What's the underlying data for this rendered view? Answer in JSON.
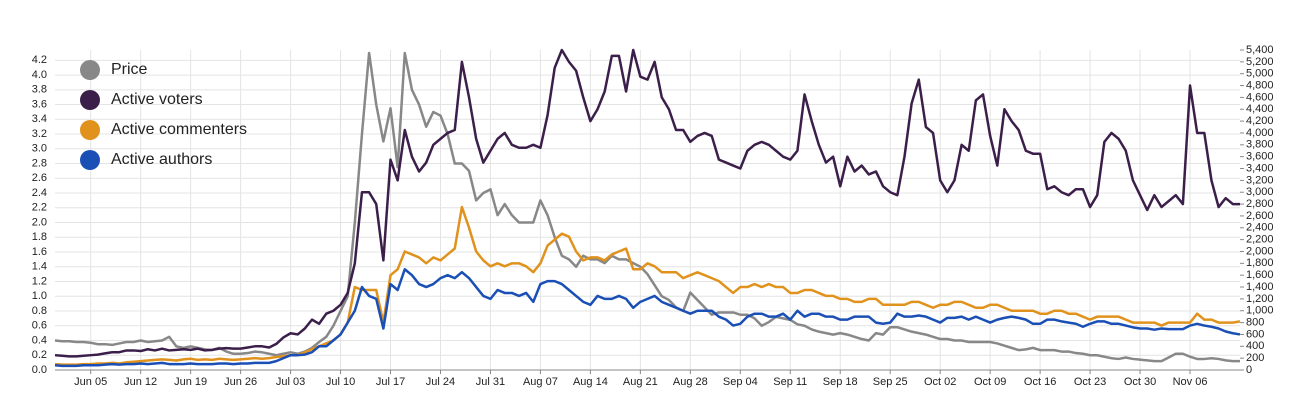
{
  "chart_data": {
    "type": "line",
    "categories": [
      "May 31",
      "Jun 01",
      "Jun 02",
      "Jun 03",
      "Jun 04",
      "Jun 05",
      "Jun 06",
      "Jun 07",
      "Jun 08",
      "Jun 09",
      "Jun 10",
      "Jun 11",
      "Jun 12",
      "Jun 13",
      "Jun 14",
      "Jun 15",
      "Jun 16",
      "Jun 17",
      "Jun 18",
      "Jun 19",
      "Jun 20",
      "Jun 21",
      "Jun 22",
      "Jun 23",
      "Jun 24",
      "Jun 25",
      "Jun 26",
      "Jun 27",
      "Jun 28",
      "Jun 29",
      "Jun 30",
      "Jul 01",
      "Jul 02",
      "Jul 03",
      "Jul 04",
      "Jul 05",
      "Jul 06",
      "Jul 07",
      "Jul 08",
      "Jul 09",
      "Jul 10",
      "Jul 11",
      "Jul 12",
      "Jul 13",
      "Jul 14",
      "Jul 15",
      "Jul 16",
      "Jul 17",
      "Jul 18",
      "Jul 19",
      "Jul 20",
      "Jul 21",
      "Jul 22",
      "Jul 23",
      "Jul 24",
      "Jul 25",
      "Jul 26",
      "Jul 27",
      "Jul 28",
      "Jul 29",
      "Jul 30",
      "Jul 31",
      "Aug 01",
      "Aug 02",
      "Aug 03",
      "Aug 04",
      "Aug 05",
      "Aug 06",
      "Aug 07",
      "Aug 08",
      "Aug 09",
      "Aug 10",
      "Aug 11",
      "Aug 12",
      "Aug 13",
      "Aug 14",
      "Aug 15",
      "Aug 16",
      "Aug 17",
      "Aug 18",
      "Aug 19",
      "Aug 20",
      "Aug 21",
      "Aug 22",
      "Aug 23",
      "Aug 24",
      "Aug 25",
      "Aug 26",
      "Aug 27",
      "Aug 28",
      "Aug 29",
      "Aug 30",
      "Aug 31",
      "Sep 01",
      "Sep 02",
      "Sep 03",
      "Sep 04",
      "Sep 05",
      "Sep 06",
      "Sep 07",
      "Sep 08",
      "Sep 09",
      "Sep 10",
      "Sep 11",
      "Sep 12",
      "Sep 13",
      "Sep 14",
      "Sep 15",
      "Sep 16",
      "Sep 17",
      "Sep 18",
      "Sep 19",
      "Sep 20",
      "Sep 21",
      "Sep 22",
      "Sep 23",
      "Sep 24",
      "Sep 25",
      "Sep 26",
      "Sep 27",
      "Sep 28",
      "Sep 29",
      "Sep 30",
      "Oct 01",
      "Oct 02",
      "Oct 03",
      "Oct 04",
      "Oct 05",
      "Oct 06",
      "Oct 07",
      "Oct 08",
      "Oct 09",
      "Oct 10",
      "Oct 11",
      "Oct 12",
      "Oct 13",
      "Oct 14",
      "Oct 15",
      "Oct 16",
      "Oct 17",
      "Oct 18",
      "Oct 19",
      "Oct 20",
      "Oct 21",
      "Oct 22",
      "Oct 23",
      "Oct 24",
      "Oct 25",
      "Oct 26",
      "Oct 27",
      "Oct 28",
      "Oct 29",
      "Oct 30",
      "Oct 31",
      "Nov 01",
      "Nov 02",
      "Nov 03",
      "Nov 04",
      "Nov 05",
      "Nov 06",
      "Nov 07",
      "Nov 08",
      "Nov 09",
      "Nov 10",
      "Nov 11",
      "Nov 12",
      "Nov 13"
    ],
    "xticks": [
      "Jun 05",
      "Jun 12",
      "Jun 19",
      "Jun 26",
      "Jul 03",
      "Jul 10",
      "Jul 17",
      "Jul 24",
      "Jul 31",
      "Aug 07",
      "Aug 14",
      "Aug 21",
      "Aug 28",
      "Sep 04",
      "Sep 11",
      "Sep 18",
      "Sep 25",
      "Oct 02",
      "Oct 09",
      "Oct 16",
      "Oct 23",
      "Oct 30",
      "Nov 06"
    ],
    "series": [
      {
        "name": "Price",
        "color": "#888888",
        "axis": "y",
        "values": [
          0.4,
          0.39,
          0.39,
          0.38,
          0.38,
          0.37,
          0.35,
          0.35,
          0.34,
          0.36,
          0.38,
          0.38,
          0.4,
          0.38,
          0.39,
          0.4,
          0.45,
          0.32,
          0.3,
          0.32,
          0.3,
          0.28,
          0.27,
          0.3,
          0.25,
          0.22,
          0.22,
          0.23,
          0.25,
          0.24,
          0.22,
          0.2,
          0.22,
          0.24,
          0.22,
          0.25,
          0.3,
          0.38,
          0.45,
          0.6,
          0.8,
          1.0,
          2.0,
          3.2,
          4.3,
          3.6,
          3.1,
          3.55,
          2.75,
          4.3,
          3.8,
          3.6,
          3.3,
          3.5,
          3.45,
          3.2,
          2.8,
          2.8,
          2.7,
          2.3,
          2.4,
          2.45,
          2.1,
          2.25,
          2.1,
          2.0,
          2.0,
          2.0,
          2.3,
          2.1,
          1.8,
          1.55,
          1.5,
          1.4,
          1.55,
          1.5,
          1.5,
          1.45,
          1.55,
          1.5,
          1.5,
          1.45,
          1.4,
          1.3,
          1.15,
          1.0,
          0.95,
          0.85,
          0.8,
          1.05,
          0.95,
          0.85,
          0.75,
          0.78,
          0.78,
          0.78,
          0.75,
          0.75,
          0.7,
          0.6,
          0.65,
          0.72,
          0.7,
          0.68,
          0.62,
          0.6,
          0.55,
          0.52,
          0.5,
          0.48,
          0.5,
          0.48,
          0.45,
          0.42,
          0.4,
          0.5,
          0.48,
          0.58,
          0.58,
          0.55,
          0.52,
          0.5,
          0.48,
          0.45,
          0.42,
          0.42,
          0.4,
          0.4,
          0.38,
          0.38,
          0.38,
          0.38,
          0.36,
          0.33,
          0.3,
          0.27,
          0.28,
          0.3,
          0.27,
          0.27,
          0.27,
          0.25,
          0.25,
          0.23,
          0.22,
          0.2,
          0.2,
          0.18,
          0.16,
          0.15,
          0.17,
          0.15,
          0.14,
          0.13,
          0.12,
          0.12,
          0.17,
          0.22,
          0.22,
          0.18,
          0.15,
          0.15,
          0.16,
          0.15,
          0.13,
          0.12,
          0.12
        ]
      },
      {
        "name": "Active voters",
        "color": "#3b1f4a",
        "axis": "y2",
        "values": [
          250,
          240,
          230,
          230,
          240,
          250,
          260,
          280,
          300,
          300,
          330,
          330,
          320,
          350,
          330,
          360,
          330,
          340,
          350,
          340,
          360,
          330,
          340,
          360,
          370,
          360,
          360,
          380,
          400,
          400,
          380,
          440,
          550,
          620,
          600,
          700,
          850,
          780,
          950,
          1000,
          1100,
          1300,
          1800,
          3000,
          3000,
          2800,
          1850,
          3550,
          3200,
          4050,
          3600,
          3350,
          3500,
          3800,
          3900,
          4000,
          4050,
          5200,
          4600,
          3900,
          3500,
          3700,
          3900,
          4000,
          3800,
          3750,
          3750,
          3800,
          3750,
          4300,
          5100,
          5400,
          5200,
          5050,
          4600,
          4200,
          4400,
          4700,
          5300,
          5300,
          4700,
          5400,
          4950,
          4900,
          5200,
          4600,
          4400,
          4050,
          4050,
          3850,
          3950,
          4000,
          3950,
          3550,
          3500,
          3450,
          3400,
          3700,
          3800,
          3850,
          3800,
          3700,
          3600,
          3550,
          3700,
          4650,
          4200,
          3800,
          3500,
          3600,
          3100,
          3600,
          3350,
          3450,
          3300,
          3350,
          3100,
          3000,
          2950,
          3600,
          4500,
          4900,
          4100,
          4000,
          3200,
          3000,
          3200,
          3800,
          3700,
          4550,
          4650,
          3950,
          3450,
          4400,
          4200,
          4050,
          3700,
          3650,
          3650,
          3050,
          3100,
          3000,
          2950,
          3050,
          3050,
          2750,
          2950,
          3850,
          4000,
          3900,
          3700,
          3200,
          2950,
          2700,
          2950,
          2750,
          2850,
          2950,
          2800,
          4800,
          4000,
          4000,
          3200,
          2750,
          2900,
          2800,
          2800
        ]
      },
      {
        "name": "Active commenters",
        "color": "#e0921c",
        "axis": "y2",
        "values": [
          100,
          90,
          90,
          90,
          100,
          100,
          110,
          110,
          120,
          110,
          130,
          140,
          150,
          160,
          170,
          180,
          170,
          160,
          180,
          190,
          170,
          180,
          170,
          190,
          180,
          170,
          180,
          190,
          200,
          190,
          200,
          220,
          230,
          250,
          250,
          300,
          350,
          400,
          450,
          500,
          600,
          800,
          1400,
          1350,
          1350,
          1350,
          800,
          1600,
          1700,
          2000,
          1950,
          1900,
          1800,
          1900,
          1850,
          1950,
          2050,
          2750,
          2400,
          2000,
          1850,
          1750,
          1800,
          1750,
          1800,
          1800,
          1750,
          1650,
          1800,
          2100,
          2200,
          2300,
          2250,
          2000,
          1850,
          1900,
          1900,
          1850,
          1950,
          2000,
          2050,
          1700,
          1700,
          1800,
          1750,
          1650,
          1650,
          1650,
          1550,
          1600,
          1650,
          1600,
          1550,
          1500,
          1400,
          1300,
          1400,
          1400,
          1450,
          1400,
          1450,
          1400,
          1400,
          1300,
          1300,
          1350,
          1350,
          1300,
          1250,
          1250,
          1200,
          1200,
          1150,
          1150,
          1200,
          1200,
          1100,
          1100,
          1100,
          1100,
          1150,
          1150,
          1100,
          1050,
          1100,
          1100,
          1150,
          1150,
          1100,
          1050,
          1050,
          1100,
          1100,
          1050,
          1000,
          1000,
          1000,
          1000,
          950,
          950,
          1000,
          1000,
          950,
          950,
          900,
          850,
          900,
          900,
          900,
          900,
          850,
          800,
          800,
          800,
          800,
          750,
          800,
          800,
          800,
          800,
          950,
          850,
          850,
          800,
          800,
          800,
          820
        ]
      },
      {
        "name": "Active authors",
        "color": "#1a4fb5",
        "axis": "y2",
        "values": [
          80,
          70,
          70,
          70,
          80,
          80,
          80,
          90,
          100,
          90,
          100,
          100,
          110,
          100,
          110,
          120,
          100,
          100,
          100,
          110,
          100,
          100,
          100,
          110,
          110,
          100,
          110,
          110,
          120,
          120,
          120,
          150,
          200,
          250,
          250,
          260,
          300,
          400,
          400,
          500,
          600,
          800,
          1000,
          1400,
          1250,
          1200,
          700,
          1450,
          1350,
          1700,
          1600,
          1450,
          1400,
          1450,
          1550,
          1600,
          1550,
          1650,
          1550,
          1400,
          1250,
          1200,
          1350,
          1300,
          1300,
          1250,
          1300,
          1150,
          1450,
          1500,
          1500,
          1450,
          1350,
          1250,
          1150,
          1100,
          1250,
          1200,
          1200,
          1250,
          1200,
          1050,
          1150,
          1200,
          1250,
          1150,
          1100,
          1050,
          1000,
          950,
          1000,
          1000,
          1000,
          900,
          850,
          750,
          780,
          900,
          950,
          950,
          900,
          900,
          950,
          850,
          1000,
          900,
          950,
          950,
          900,
          900,
          850,
          850,
          900,
          900,
          900,
          800,
          780,
          800,
          950,
          900,
          900,
          920,
          900,
          850,
          800,
          880,
          880,
          900,
          850,
          900,
          850,
          800,
          850,
          880,
          900,
          880,
          850,
          780,
          780,
          850,
          850,
          820,
          800,
          780,
          730,
          780,
          820,
          820,
          780,
          780,
          750,
          720,
          700,
          700,
          680,
          700,
          690,
          690,
          690,
          750,
          780,
          750,
          730,
          700,
          650,
          620,
          600
        ]
      }
    ],
    "ylim": [
      0,
      4.34
    ],
    "yticks": [
      {
        "value": 0,
        "label": "0.0"
      },
      0.2,
      0.4,
      0.6,
      0.8,
      {
        "value": 1,
        "label": "1.0"
      },
      1.2,
      1.4,
      1.6,
      1.8,
      {
        "value": 2,
        "label": "2.0"
      },
      2.2,
      2.4,
      2.6,
      2.8,
      {
        "value": 3,
        "label": "3.0"
      },
      3.2,
      3.4,
      3.6,
      3.8,
      {
        "value": 4,
        "label": "4.0"
      },
      4.2
    ],
    "y2lim": [
      0,
      5400
    ],
    "y2ticks": [
      0,
      200,
      400,
      600,
      800,
      {
        "value": 1000,
        "label": "1,000"
      },
      {
        "value": 1200,
        "label": "1,200"
      },
      {
        "value": 1400,
        "label": "1,400"
      },
      {
        "value": 1600,
        "label": "1,600"
      },
      {
        "value": 1800,
        "label": "1,800"
      },
      {
        "value": 2000,
        "label": "2,000"
      },
      {
        "value": 2200,
        "label": "2,200"
      },
      {
        "value": 2400,
        "label": "2,400"
      },
      {
        "value": 2600,
        "label": "2,600"
      },
      {
        "value": 2800,
        "label": "2,800"
      },
      {
        "value": 3000,
        "label": "3,000"
      },
      {
        "value": 3200,
        "label": "3,200"
      },
      {
        "value": 3400,
        "label": "3,400"
      },
      {
        "value": 3600,
        "label": "3,600"
      },
      {
        "value": 3800,
        "label": "3,800"
      },
      {
        "value": 4000,
        "label": "4,000"
      },
      {
        "value": 4200,
        "label": "4,200"
      },
      {
        "value": 4400,
        "label": "4,400"
      },
      {
        "value": 4600,
        "label": "4,600"
      },
      {
        "value": 4800,
        "label": "4,800"
      },
      {
        "value": 5000,
        "label": "5,000"
      },
      {
        "value": 5200,
        "label": "5,200"
      },
      {
        "value": 5400,
        "label": "5,400"
      }
    ],
    "grid": true,
    "legend": "upper-left"
  }
}
